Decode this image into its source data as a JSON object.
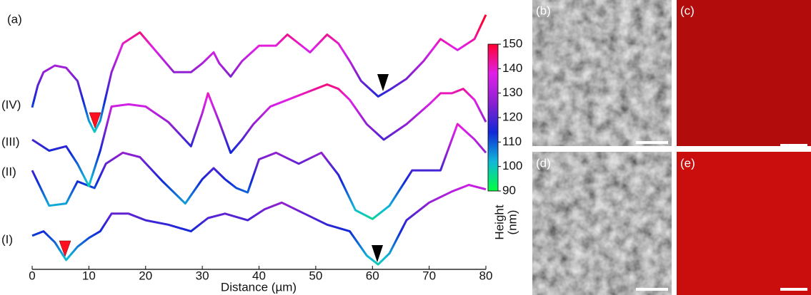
{
  "chart_data": {
    "type": "line",
    "panel_label": "(a)",
    "xlabel": "Distance (µm)",
    "xlim": [
      0,
      80
    ],
    "xticks": [
      0,
      10,
      20,
      30,
      40,
      50,
      60,
      70,
      80
    ],
    "colorbar": {
      "label": [
        "Height",
        "(nm)"
      ],
      "lim": [
        90,
        150
      ],
      "ticks": [
        90,
        100,
        110,
        120,
        130,
        140,
        150
      ],
      "colors": [
        "#00ff40",
        "#10b8d8",
        "#1028d8",
        "#8a20d0",
        "#e020e8",
        "#ff0030"
      ]
    },
    "series": [
      {
        "name": "(I)",
        "x": [
          0,
          2,
          4,
          6,
          8,
          10,
          12,
          14,
          17,
          20,
          24,
          28,
          31,
          34,
          38,
          41,
          44,
          48,
          52,
          56,
          59,
          61,
          63,
          66,
          70,
          74,
          77,
          80
        ],
        "values": [
          112,
          114,
          109,
          101,
          107,
          111,
          114,
          122,
          122,
          119,
          117,
          114,
          120,
          122,
          119,
          124,
          127,
          122,
          117,
          114,
          103,
          99,
          104,
          119,
          127,
          132,
          135,
          133
        ]
      },
      {
        "name": "(II)",
        "x": [
          0,
          3,
          6,
          8,
          11,
          13,
          16,
          19,
          23,
          27,
          30,
          32,
          34,
          36,
          38,
          40,
          43,
          47,
          51,
          54,
          57,
          60,
          63,
          67,
          72,
          75,
          78,
          80
        ],
        "values": [
          119,
          103,
          104,
          114,
          111,
          122,
          127,
          125,
          114,
          104,
          115,
          120,
          115,
          111,
          109,
          124,
          127,
          122,
          127,
          117,
          101,
          97,
          103,
          119,
          119,
          140,
          133,
          127
        ]
      },
      {
        "name": "(III)",
        "x": [
          0,
          3,
          6,
          8,
          10,
          12,
          14,
          17,
          20,
          24,
          28,
          30,
          31,
          33,
          35,
          37,
          39,
          42,
          45,
          48,
          50,
          52,
          54,
          56,
          59,
          62,
          66,
          70,
          72,
          74,
          76,
          78,
          80
        ],
        "values": [
          120,
          115,
          117,
          109,
          99,
          115,
          135,
          136,
          135,
          128,
          117,
          132,
          141,
          128,
          114,
          120,
          127,
          135,
          138,
          141,
          143,
          145,
          143,
          138,
          127,
          120,
          127,
          136,
          141,
          141,
          143,
          138,
          128
        ]
      },
      {
        "name": "(IV)",
        "x": [
          0,
          1,
          2,
          4,
          6,
          8,
          10,
          11,
          12,
          14,
          16,
          19,
          22,
          25,
          28,
          30,
          32,
          33,
          35,
          37,
          40,
          43,
          45,
          47,
          49,
          52,
          54,
          56,
          58,
          61,
          63,
          66,
          69,
          72,
          75,
          78,
          80
        ],
        "values": [
          111,
          121,
          127,
          130,
          129,
          123,
          105,
          100,
          105,
          127,
          140,
          145,
          136,
          127,
          127,
          131,
          136,
          131,
          125,
          132,
          139,
          139,
          144,
          140,
          136,
          144,
          140,
          132,
          123,
          116,
          119,
          124,
          132,
          142,
          137,
          142,
          153
        ]
      }
    ]
  },
  "images": [
    {
      "label": "(b)"
    },
    {
      "label": "(c)"
    },
    {
      "label": "(d)"
    },
    {
      "label": "(e)"
    }
  ]
}
